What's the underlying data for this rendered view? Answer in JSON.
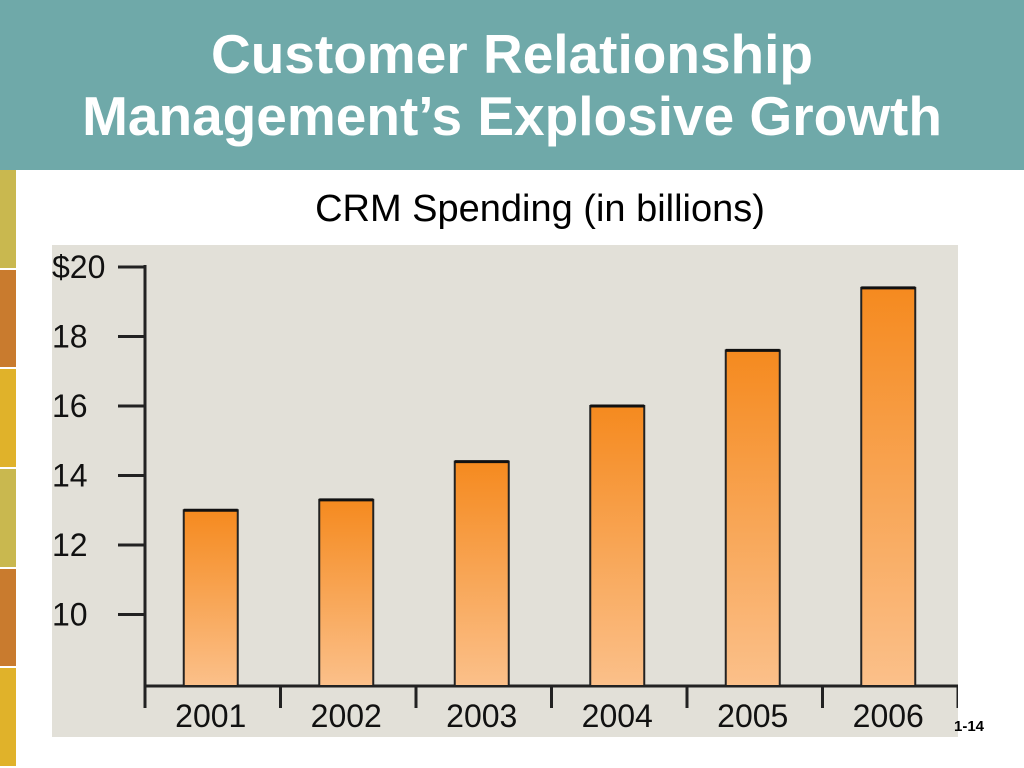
{
  "slide": {
    "title_line1": "Customer Relationship",
    "title_line2": "Management’s Explosive Growth",
    "page_number": "1-14",
    "colors": {
      "title_bar": "#6fa9a9",
      "title_text": "#ffffff",
      "side_strip": [
        "#c9b84f",
        "#c97b2e",
        "#e0b22a",
        "#c9b84f",
        "#c97b2e",
        "#e0b22a"
      ]
    }
  },
  "chart_data": {
    "type": "bar",
    "title": "CRM Spending (in billions)",
    "xlabel": "",
    "ylabel": "",
    "categories": [
      "2001",
      "2002",
      "2003",
      "2004",
      "2005",
      "2006"
    ],
    "values": [
      13.0,
      13.3,
      14.4,
      16.0,
      17.6,
      19.4
    ],
    "ylim": [
      8,
      20
    ],
    "yticks": [
      10,
      12,
      14,
      16,
      18,
      20
    ],
    "ytick_labels": [
      "10",
      "12",
      "14",
      "16",
      "18",
      "$20"
    ],
    "grid": false,
    "legend": "none",
    "colors": {
      "plot_background": "#e2e0d8",
      "bar_top": "#f58a1f",
      "bar_bottom": "#fbc08a",
      "bar_outline": "#222222"
    }
  }
}
